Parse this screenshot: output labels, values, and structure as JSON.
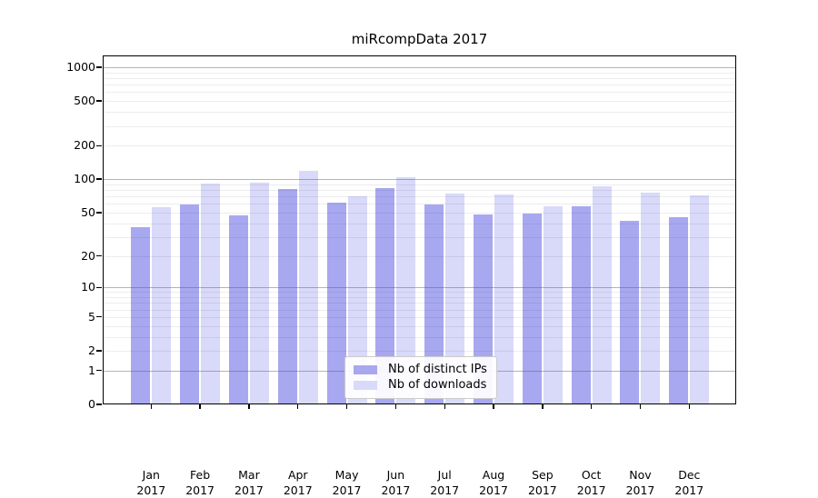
{
  "title": "miRcompData 2017",
  "legend": {
    "position": "lower-center",
    "items": [
      {
        "label": "Nb of distinct IPs",
        "color": "#a8a8f0"
      },
      {
        "label": "Nb of downloads",
        "color": "#d9d9f9"
      }
    ]
  },
  "chart_data": {
    "type": "bar",
    "title": "miRcompData 2017",
    "categories": [
      "Jan",
      "Feb",
      "Mar",
      "Apr",
      "May",
      "Jun",
      "Jul",
      "Aug",
      "Sep",
      "Oct",
      "Nov",
      "Dec"
    ],
    "x_year_line": "2017",
    "series": [
      {
        "name": "Nb of distinct IPs",
        "color": "#a8a8f0",
        "values": [
          37,
          59,
          47,
          82,
          61,
          83,
          59,
          48,
          49,
          57,
          42,
          45
        ]
      },
      {
        "name": "Nb of downloads",
        "color": "#d9d9f9",
        "values": [
          56,
          92,
          93,
          118,
          70,
          104,
          74,
          73,
          57,
          86,
          76,
          71
        ]
      }
    ],
    "yscale": "log10(1+x)",
    "ylim": [
      0,
      1275
    ],
    "y_tick_values": [
      0,
      1,
      2,
      5,
      10,
      20,
      50,
      100,
      200,
      500,
      1000
    ],
    "y_tick_labels": [
      "0",
      "1",
      "2",
      "5",
      "10",
      "20",
      "50",
      "100",
      "200",
      "500",
      "1000"
    ],
    "grid": {
      "major": [
        1,
        10,
        100,
        1000
      ],
      "minor": [
        2,
        3,
        4,
        5,
        6,
        7,
        8,
        9,
        20,
        30,
        40,
        50,
        60,
        70,
        80,
        90,
        200,
        300,
        400,
        500,
        600,
        700,
        800,
        900
      ]
    },
    "legend_position": "lower center",
    "grid_on": true
  },
  "colors": {
    "spine": "#000000",
    "background": "#ffffff"
  }
}
